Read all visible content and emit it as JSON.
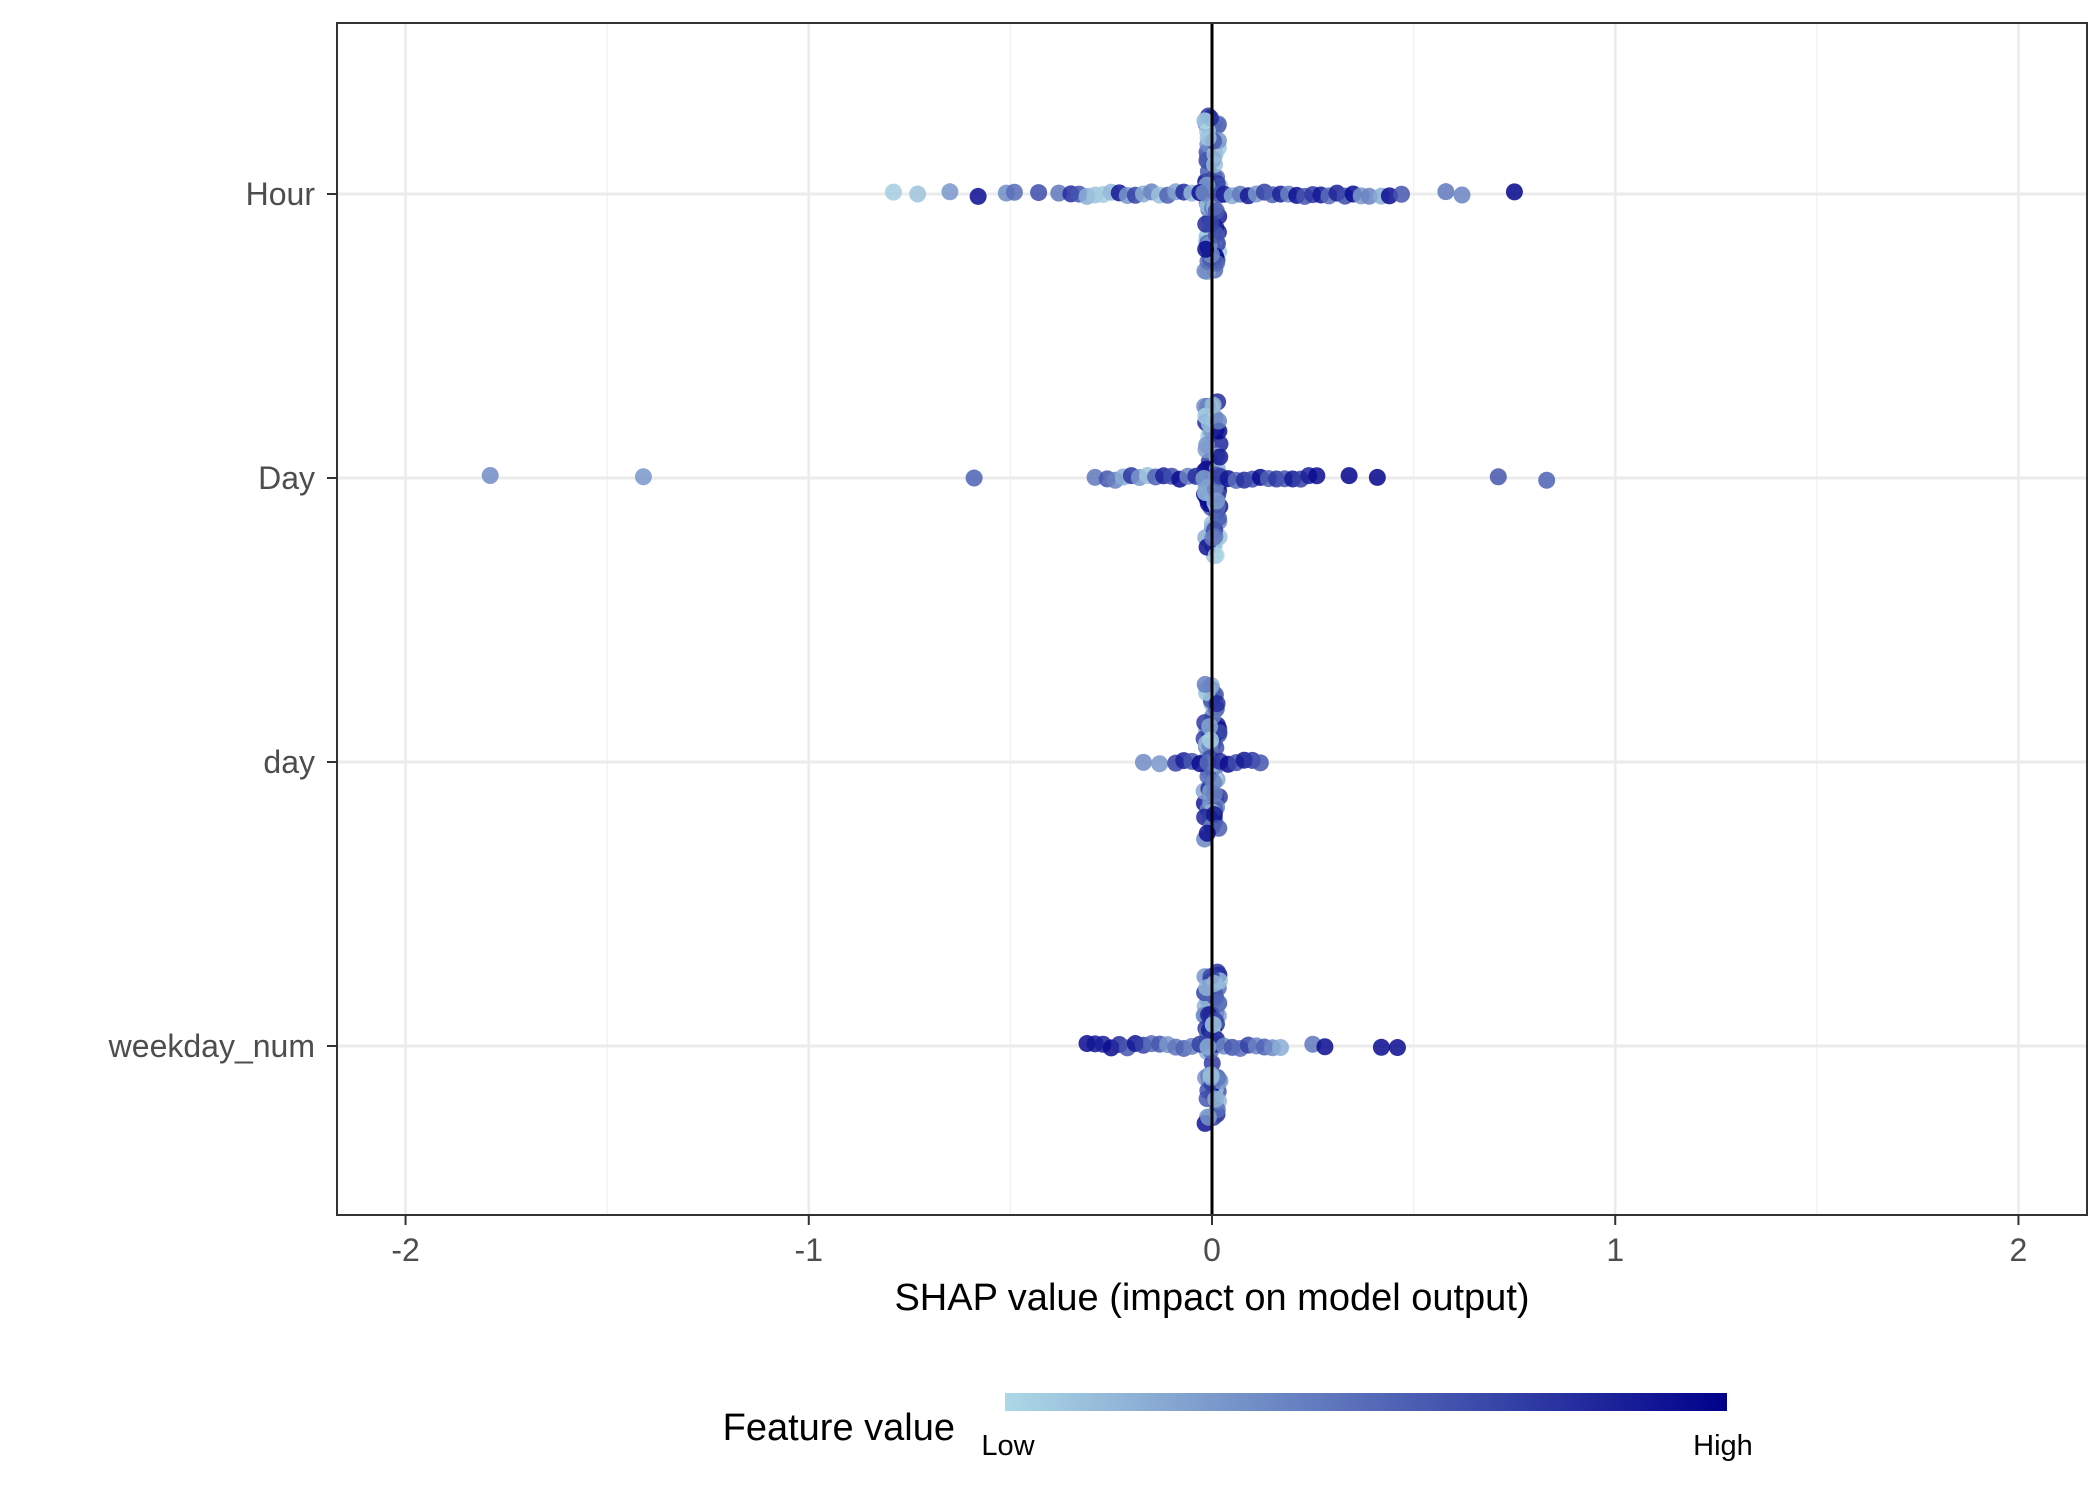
{
  "chart_data": {
    "type": "scatter",
    "subtype": "beeswarm",
    "title": "",
    "xlabel": "SHAP value (impact on model output)",
    "ylabel": "",
    "xlim": [
      -2.17,
      2.17
    ],
    "x_ticks": [
      -2,
      -1,
      0,
      1,
      2
    ],
    "x_tick_labels": [
      "-2",
      "-1",
      "0",
      "1",
      "2"
    ],
    "grid": true,
    "zero_line": true,
    "categories": [
      "Hour",
      "Day",
      "day",
      "weekday_num"
    ],
    "colors": {
      "low": "#add8e6",
      "high": "#00008b",
      "grid": "#ebebeb",
      "zero_line": "#000000"
    },
    "legend": {
      "title": "Feature value",
      "low_label": "Low",
      "high_label": "High",
      "position": "bottom"
    },
    "series": [
      {
        "feature": "Hour",
        "points": [
          [
            -0.79,
            0.05
          ],
          [
            -0.73,
            0.1
          ],
          [
            -0.65,
            0.3
          ],
          [
            -0.58,
            0.95
          ],
          [
            -0.51,
            0.35
          ],
          [
            -0.49,
            0.5
          ],
          [
            -0.43,
            0.65
          ],
          [
            -0.38,
            0.45
          ],
          [
            -0.35,
            0.8
          ],
          [
            -0.33,
            0.6
          ],
          [
            -0.31,
            0.2
          ],
          [
            -0.29,
            0.1
          ],
          [
            -0.27,
            0.05
          ],
          [
            -0.25,
            0.15
          ],
          [
            -0.23,
            0.9
          ],
          [
            -0.21,
            0.3
          ],
          [
            -0.19,
            0.7
          ],
          [
            -0.17,
            0.2
          ],
          [
            -0.15,
            0.4
          ],
          [
            -0.13,
            0.1
          ],
          [
            -0.11,
            0.55
          ],
          [
            -0.09,
            0.25
          ],
          [
            -0.07,
            0.8
          ],
          [
            -0.05,
            0.15
          ],
          [
            -0.03,
            0.95
          ],
          [
            -0.02,
            0.35
          ],
          [
            0.02,
            0.6
          ],
          [
            0.03,
            0.85
          ],
          [
            0.05,
            0.2
          ],
          [
            0.07,
            0.45
          ],
          [
            0.09,
            0.9
          ],
          [
            0.11,
            0.3
          ],
          [
            0.13,
            0.7
          ],
          [
            0.15,
            0.55
          ],
          [
            0.17,
            0.85
          ],
          [
            0.19,
            0.4
          ],
          [
            0.21,
            0.95
          ],
          [
            0.23,
            0.6
          ],
          [
            0.25,
            0.75
          ],
          [
            0.27,
            0.9
          ],
          [
            0.29,
            0.5
          ],
          [
            0.31,
            0.85
          ],
          [
            0.33,
            0.65
          ],
          [
            0.35,
            0.95
          ],
          [
            0.37,
            0.3
          ],
          [
            0.39,
            0.4
          ],
          [
            0.42,
            0.2
          ],
          [
            0.44,
            0.95
          ],
          [
            0.47,
            0.6
          ],
          [
            0.58,
            0.45
          ],
          [
            0.62,
            0.4
          ],
          [
            0.75,
            0.98
          ]
        ]
      },
      {
        "feature": "Day",
        "points": [
          [
            -1.79,
            0.35
          ],
          [
            -1.41,
            0.3
          ],
          [
            -0.59,
            0.55
          ],
          [
            -0.29,
            0.45
          ],
          [
            -0.26,
            0.6
          ],
          [
            -0.24,
            0.4
          ],
          [
            -0.22,
            0.2
          ],
          [
            -0.2,
            0.75
          ],
          [
            -0.18,
            0.3
          ],
          [
            -0.16,
            0.1
          ],
          [
            -0.14,
            0.55
          ],
          [
            -0.12,
            0.85
          ],
          [
            -0.1,
            0.65
          ],
          [
            -0.08,
            0.95
          ],
          [
            -0.06,
            0.4
          ],
          [
            -0.04,
            0.8
          ],
          [
            -0.02,
            0.25
          ],
          [
            0.02,
            0.7
          ],
          [
            0.04,
            0.9
          ],
          [
            0.06,
            0.5
          ],
          [
            0.08,
            0.8
          ],
          [
            0.1,
            0.65
          ],
          [
            0.12,
            0.95
          ],
          [
            0.14,
            0.55
          ],
          [
            0.16,
            0.75
          ],
          [
            0.18,
            0.6
          ],
          [
            0.2,
            0.9
          ],
          [
            0.22,
            0.7
          ],
          [
            0.24,
            0.85
          ],
          [
            0.26,
            0.95
          ],
          [
            0.34,
            0.98
          ],
          [
            0.41,
            0.98
          ],
          [
            0.71,
            0.6
          ],
          [
            0.83,
            0.55
          ]
        ]
      },
      {
        "feature": "day",
        "points": [
          [
            -0.17,
            0.35
          ],
          [
            -0.13,
            0.3
          ],
          [
            -0.09,
            0.7
          ],
          [
            -0.07,
            0.85
          ],
          [
            -0.05,
            0.6
          ],
          [
            -0.03,
            0.95
          ],
          [
            -0.01,
            0.5
          ],
          [
            0.02,
            0.8
          ],
          [
            0.04,
            0.95
          ],
          [
            0.06,
            0.65
          ],
          [
            0.08,
            0.9
          ],
          [
            0.1,
            0.75
          ],
          [
            0.12,
            0.6
          ]
        ]
      },
      {
        "feature": "weekday_num",
        "points": [
          [
            -0.31,
            0.95
          ],
          [
            -0.29,
            0.9
          ],
          [
            -0.27,
            0.85
          ],
          [
            -0.25,
            0.95
          ],
          [
            -0.23,
            0.8
          ],
          [
            -0.21,
            0.6
          ],
          [
            -0.19,
            0.9
          ],
          [
            -0.17,
            0.7
          ],
          [
            -0.15,
            0.5
          ],
          [
            -0.13,
            0.6
          ],
          [
            -0.11,
            0.3
          ],
          [
            -0.09,
            0.45
          ],
          [
            -0.07,
            0.55
          ],
          [
            -0.05,
            0.4
          ],
          [
            -0.03,
            0.7
          ],
          [
            -0.01,
            0.2
          ],
          [
            0.03,
            0.35
          ],
          [
            0.05,
            0.6
          ],
          [
            0.07,
            0.5
          ],
          [
            0.09,
            0.7
          ],
          [
            0.11,
            0.4
          ],
          [
            0.13,
            0.55
          ],
          [
            0.15,
            0.35
          ],
          [
            0.17,
            0.2
          ],
          [
            0.25,
            0.45
          ],
          [
            0.28,
            0.95
          ],
          [
            0.42,
            0.95
          ],
          [
            0.46,
            0.95
          ]
        ]
      }
    ]
  }
}
